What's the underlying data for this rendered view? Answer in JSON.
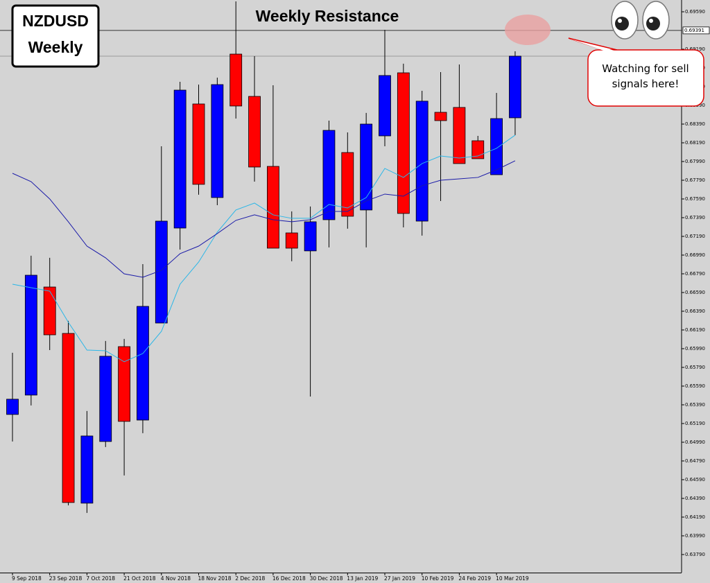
{
  "chart_data": {
    "type": "candlestick",
    "title": "NZDUSD",
    "subtitle": "Weekly",
    "annotations": [
      "Weekly Resistance",
      "Watching for sell signals here!"
    ],
    "categories": [
      "9 Sep 2018",
      null,
      "23 Sep 2018",
      null,
      "7 Oct 2018",
      null,
      "21 Oct 2018",
      null,
      "4 Nov 2018",
      null,
      "18 Nov 2018",
      null,
      "2 Dec 2018",
      null,
      "16 Dec 2018",
      null,
      "30 Dec 2018",
      null,
      "13 Jan 2019",
      null,
      "27 Jan 2019",
      null,
      "10 Feb 2019",
      null,
      "24 Feb 2019",
      null,
      "10 Mar 2019",
      null
    ],
    "open": [
      0.65287,
      0.65494,
      0.66649,
      0.66153,
      0.64339,
      0.64998,
      0.66012,
      0.65227,
      0.66264,
      0.67279,
      0.68605,
      0.67605,
      0.69138,
      0.68686,
      0.67938,
      0.67227,
      0.67035,
      0.67368,
      0.68086,
      0.67472,
      0.68264,
      0.68938,
      0.67353,
      0.68516,
      0.68568,
      0.68212,
      0.67849,
      0.68457
    ],
    "high": [
      0.65946,
      0.66983,
      0.66961,
      0.66287,
      0.65324,
      0.66072,
      0.66094,
      0.66894,
      0.68153,
      0.68842,
      0.68812,
      0.68886,
      0.69701,
      0.69116,
      0.68805,
      0.67457,
      0.67509,
      0.68427,
      0.68301,
      0.68509,
      0.69397,
      0.69035,
      0.68746,
      0.68946,
      0.69027,
      0.68264,
      0.68723,
      0.69168
    ],
    "low": [
      0.64998,
      0.65383,
      0.65975,
      0.64316,
      0.64235,
      0.64939,
      0.64635,
      0.65087,
      0.66264,
      0.67049,
      0.67635,
      0.67523,
      0.68449,
      0.67775,
      0.67064,
      0.66924,
      0.65479,
      0.67072,
      0.67272,
      0.67072,
      0.68153,
      0.67286,
      0.67198,
      0.67568,
      0.67968,
      0.6802,
      0.67849,
      0.68272
    ],
    "close": [
      0.6545,
      0.66775,
      0.66138,
      0.64346,
      0.65057,
      0.65909,
      0.65213,
      0.66442,
      0.67353,
      0.68753,
      0.67746,
      0.68812,
      0.68583,
      0.67931,
      0.67064,
      0.67064,
      0.67346,
      0.68323,
      0.67405,
      0.6839,
      0.68909,
      0.67435,
      0.68635,
      0.68427,
      0.67968,
      0.6802,
      0.68449,
      0.69116
    ],
    "up_color": "#0000ff",
    "down_color": "#ff0000",
    "lines": [
      {
        "color": "#29b6e8",
        "values": [
          0.66679,
          0.66642,
          0.66605,
          0.66272,
          0.65975,
          0.65968,
          0.6585,
          0.65938,
          0.66175,
          0.66679,
          0.66916,
          0.67235,
          0.67472,
          0.67546,
          0.6742,
          0.67383,
          0.67383,
          0.67531,
          0.67494,
          0.67605,
          0.67916,
          0.6782,
          0.67968,
          0.68049,
          0.68027,
          0.68049,
          0.68131,
          0.68272
        ]
      },
      {
        "color": "#1a1aa8",
        "values": [
          0.67864,
          0.67775,
          0.6759,
          0.67346,
          0.67086,
          0.66961,
          0.6679,
          0.66753,
          0.66827,
          0.67005,
          0.67086,
          0.6722,
          0.67361,
          0.6742,
          0.67368,
          0.67346,
          0.67368,
          0.67457,
          0.67457,
          0.67568,
          0.67642,
          0.6762,
          0.67731,
          0.6779,
          0.67805,
          0.6782,
          0.67901,
          0.67998
        ]
      }
    ],
    "resistance": 0.69391,
    "ylim": [
      0.63597,
      0.69716
    ],
    "yticks": [
      {
        "value": 0.6959,
        "label": "0.69590"
      },
      {
        "value": 0.6919,
        "label": "0.69190"
      },
      {
        "value": 0.6899,
        "label": "0.68990"
      },
      {
        "value": 0.6879,
        "label": "0.68790"
      },
      {
        "value": 0.6859,
        "label": "0.68590"
      },
      {
        "value": 0.6839,
        "label": "0.68390"
      },
      {
        "value": 0.6819,
        "label": "0.68190"
      },
      {
        "value": 0.6799,
        "label": "0.67990"
      },
      {
        "value": 0.6779,
        "label": "0.67790"
      },
      {
        "value": 0.6759,
        "label": "0.67590"
      },
      {
        "value": 0.6739,
        "label": "0.67390"
      },
      {
        "value": 0.6719,
        "label": "0.67190"
      },
      {
        "value": 0.6699,
        "label": "0.66990"
      },
      {
        "value": 0.6679,
        "label": "0.66790"
      },
      {
        "value": 0.6659,
        "label": "0.66590"
      },
      {
        "value": 0.6639,
        "label": "0.66390"
      },
      {
        "value": 0.6619,
        "label": "0.66190"
      },
      {
        "value": 0.6599,
        "label": "0.65990"
      },
      {
        "value": 0.6579,
        "label": "0.65790"
      },
      {
        "value": 0.6559,
        "label": "0.65590"
      },
      {
        "value": 0.6539,
        "label": "0.65390"
      },
      {
        "value": 0.6519,
        "label": "0.65190"
      },
      {
        "value": 0.6499,
        "label": "0.64990"
      },
      {
        "value": 0.6479,
        "label": "0.64790"
      },
      {
        "value": 0.6459,
        "label": "0.64590"
      },
      {
        "value": 0.6439,
        "label": "0.64390"
      },
      {
        "value": 0.6419,
        "label": "0.64190"
      },
      {
        "value": 0.6399,
        "label": "0.63990"
      },
      {
        "value": 0.6379,
        "label": "0.63790"
      }
    ]
  }
}
